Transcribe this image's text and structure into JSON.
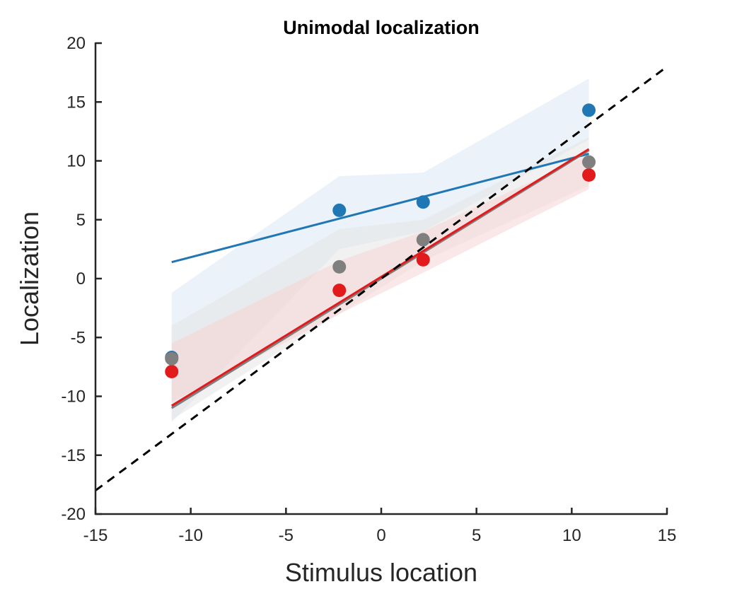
{
  "chart_data": {
    "type": "scatter",
    "title": "Unimodal localization",
    "xlabel": "Stimulus location",
    "ylabel": "Localization",
    "xlim": [
      -15,
      15
    ],
    "ylim": [
      -20,
      20
    ],
    "xticks": [
      -15,
      -10,
      -5,
      0,
      5,
      10,
      15
    ],
    "yticks": [
      -20,
      -15,
      -10,
      -5,
      0,
      5,
      10,
      15,
      20
    ],
    "grid": false,
    "identity_line": {
      "style": "dashed",
      "color": "#000000",
      "from": [
        -15,
        -18
      ],
      "to": [
        15,
        18
      ]
    },
    "series": [
      {
        "color": "#1f77b4",
        "band_color": "#dce8f4",
        "x": [
          -11,
          -2.2,
          2.2,
          10.9
        ],
        "y": [
          -6.7,
          5.8,
          6.5,
          14.3
        ],
        "band_upper": [
          -1.2,
          8.7,
          9.0,
          17.0
        ],
        "band_lower": [
          -12.2,
          2.5,
          4.0,
          11.8
        ],
        "fit": {
          "x": [
            -11,
            10.9
          ],
          "y": [
            1.4,
            10.6
          ]
        }
      },
      {
        "color": "#7f7f7f",
        "band_color": "#e6e6e6",
        "x": [
          -11,
          -2.2,
          2.2,
          10.9
        ],
        "y": [
          -6.8,
          1.0,
          3.3,
          9.9
        ],
        "band_upper": [
          -4.0,
          4.2,
          5.0,
          12.0
        ],
        "band_lower": [
          -12.0,
          -3.0,
          1.5,
          7.9
        ],
        "fit": {
          "x": [
            -11,
            10.9
          ],
          "y": [
            -11.0,
            10.9
          ]
        }
      },
      {
        "color": "#e31a1c",
        "band_color": "#f6d3d3",
        "x": [
          -11,
          -2.2,
          2.2,
          10.9
        ],
        "y": [
          -7.9,
          -1.0,
          1.6,
          8.8
        ],
        "band_upper": [
          -5.5,
          1.5,
          4.0,
          10.5
        ],
        "band_lower": [
          -10.5,
          -3.0,
          0.5,
          7.6
        ],
        "fit": {
          "x": [
            -11,
            10.9
          ],
          "y": [
            -10.8,
            11.0
          ]
        }
      }
    ]
  }
}
